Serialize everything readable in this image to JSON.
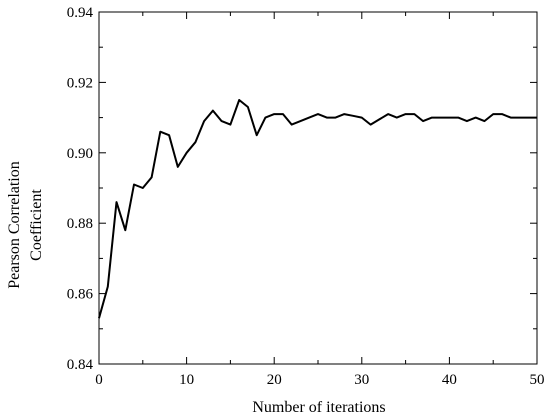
{
  "chart_data": {
    "type": "line",
    "title": "",
    "xlabel": "Number of iterations",
    "ylabel": [
      "Pearson Correlation",
      "Coefficient"
    ],
    "xlim": [
      0,
      50
    ],
    "ylim": [
      0.84,
      0.94
    ],
    "xticks": [
      0,
      10,
      20,
      30,
      40,
      50
    ],
    "yticks": [
      0.84,
      0.86,
      0.88,
      0.9,
      0.92,
      0.94
    ],
    "xtick_labels": [
      "0",
      "10",
      "20",
      "30",
      "40",
      "50"
    ],
    "ytick_labels": [
      "0.84",
      "0.86",
      "0.88",
      "0.90",
      "0.92",
      "0.94"
    ],
    "grid": false,
    "series": [
      {
        "x": [
          0,
          1,
          2,
          3,
          4,
          5,
          6,
          7,
          8,
          9,
          10,
          11,
          12,
          13,
          14,
          15,
          16,
          17,
          18,
          19,
          20,
          21,
          22,
          23,
          24,
          25,
          26,
          27,
          28,
          29,
          30,
          31,
          32,
          33,
          34,
          35,
          36,
          37,
          38,
          39,
          40,
          41,
          42,
          43,
          44,
          45,
          46,
          47,
          48,
          49,
          50
        ],
        "y": [
          0.853,
          0.862,
          0.886,
          0.878,
          0.891,
          0.89,
          0.893,
          0.906,
          0.905,
          0.896,
          0.9,
          0.903,
          0.909,
          0.912,
          0.909,
          0.908,
          0.915,
          0.913,
          0.905,
          0.91,
          0.911,
          0.911,
          0.908,
          0.909,
          0.91,
          0.911,
          0.91,
          0.91,
          0.911,
          0.9105,
          0.91,
          0.908,
          0.9095,
          0.911,
          0.91,
          0.911,
          0.911,
          0.909,
          0.91,
          0.91,
          0.91,
          0.91,
          0.909,
          0.91,
          0.909,
          0.911,
          0.911,
          0.91,
          0.91,
          0.91,
          0.91
        ]
      }
    ]
  }
}
